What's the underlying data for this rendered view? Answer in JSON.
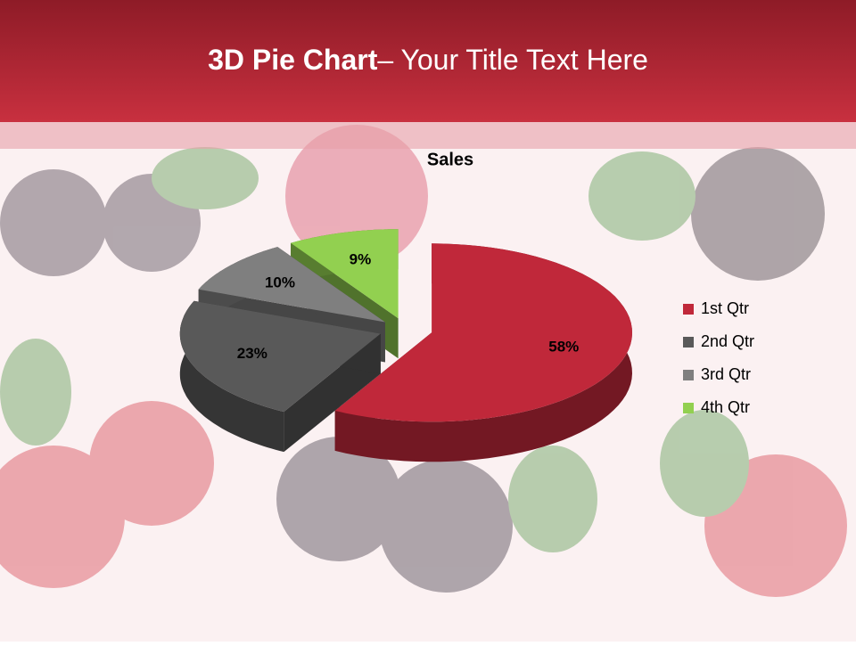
{
  "slide": {
    "title_bold": "3D Pie Chart",
    "title_rest": "– Your Title Text Here"
  },
  "chart_data": {
    "type": "pie",
    "title": "Sales",
    "categories": [
      "1st Qtr",
      "2nd Qtr",
      "3rd Qtr",
      "4th Qtr"
    ],
    "values": [
      58,
      23,
      10,
      9
    ],
    "value_labels": [
      "58%",
      "23%",
      "10%",
      "9%"
    ],
    "colors": [
      "#c0283a",
      "#595959",
      "#7f7f7f",
      "#92d050"
    ],
    "legend": "right"
  }
}
